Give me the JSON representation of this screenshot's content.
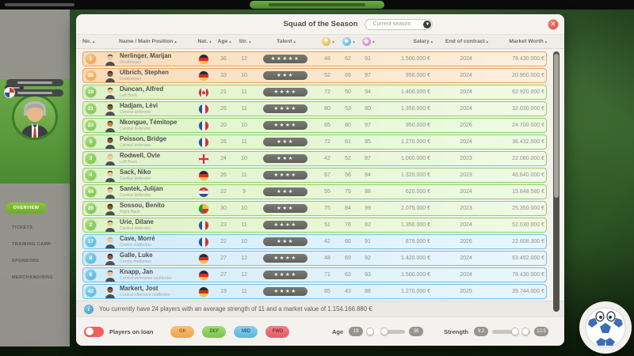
{
  "top_bar": {
    "has_left_caption": true,
    "center_button_color": "#5fa03d"
  },
  "sidebar": {
    "active_item": "OVERVIEW",
    "items": [
      "TICKETS",
      "TRAINING CAMP",
      "SPONSORS",
      "MERCHANDISING"
    ]
  },
  "modal": {
    "title": "Squad of the Season",
    "season_dropdown": {
      "value": "Current season"
    },
    "close_label": "✕",
    "table": {
      "columns": {
        "no": "No.",
        "name": "Name / Main Position",
        "nat": "Nat.",
        "age": "Age",
        "str": "Str.",
        "talent": "Talent",
        "salary": "Salary",
        "contract": "End of contract",
        "worth": "Market Worth"
      },
      "stat_icons": [
        "yellow-ball",
        "blue-ball",
        "purple-ring"
      ],
      "group_colors": {
        "gk": "#e9a45a",
        "def": "#8fd163",
        "mid": "#6fc3e4"
      },
      "rows": [
        {
          "no": "1",
          "name": "Nerlinger, Marijan",
          "position": "Goalkeeper",
          "nat": "de",
          "age": "36",
          "str": "12",
          "talent": 5,
          "stats": [
            "48",
            "62",
            "91"
          ],
          "salary": "1.500.000 €",
          "contract": "2024",
          "worth": "78.430.000 €",
          "group": "gk",
          "tone": "light"
        },
        {
          "no": "26",
          "name": "Ulbrich, Stephen",
          "position": "Goalkeeper",
          "nat": "de",
          "age": "33",
          "str": "10",
          "talent": 3,
          "stats": [
            "52",
            "69",
            "97"
          ],
          "salary": "950.000 €",
          "contract": "2024",
          "worth": "20.900.000 €",
          "group": "gk",
          "tone": "dark"
        },
        {
          "no": "19",
          "name": "Duncan, Alfred",
          "position": "Left Back",
          "nat": "ca",
          "age": "21",
          "str": "11",
          "talent": 4,
          "stats": [
            "72",
            "50",
            "94"
          ],
          "salary": "1.400.000 €",
          "contract": "2024",
          "worth": "62.920.000 €",
          "group": "def",
          "tone": "light"
        },
        {
          "no": "21",
          "name": "Hadjam, Lévi",
          "position": "Central defender",
          "nat": "fr",
          "age": "26",
          "str": "11",
          "talent": 4,
          "stats": [
            "80",
            "53",
            "80"
          ],
          "salary": "1.350.000 €",
          "contract": "2024",
          "worth": "32.030.000 €",
          "group": "def",
          "tone": "dark"
        },
        {
          "no": "23",
          "name": "Nkongue, Témitope",
          "position": "Central defender",
          "nat": "fr",
          "age": "20",
          "str": "10",
          "talent": 4,
          "stats": [
            "65",
            "80",
            "97"
          ],
          "salary": "950.000 €",
          "contract": "2026",
          "worth": "24.700.000 €",
          "group": "def",
          "tone": "mid"
        },
        {
          "no": "5",
          "name": "Peisson, Bridge",
          "position": "Central defender",
          "nat": "fr",
          "age": "26",
          "str": "11",
          "talent": 3,
          "stats": [
            "72",
            "61",
            "85"
          ],
          "salary": "1.270.000 €",
          "contract": "2024",
          "worth": "36.432.000 €",
          "group": "def",
          "tone": "dark"
        },
        {
          "no": "3",
          "name": "Rodwell, Ovie",
          "position": "Left Back",
          "nat": "en",
          "age": "24",
          "str": "10",
          "talent": 3,
          "stats": [
            "42",
            "52",
            "87"
          ],
          "salary": "1.000.000 €",
          "contract": "2023",
          "worth": "22.080.000 €",
          "group": "def",
          "tone": "blond"
        },
        {
          "no": "4",
          "name": "Sack, Niko",
          "position": "Central defender",
          "nat": "de",
          "age": "26",
          "str": "11",
          "talent": 4,
          "stats": [
            "67",
            "56",
            "84"
          ],
          "salary": "1.320.000 €",
          "contract": "2023",
          "worth": "46.640.000 €",
          "group": "def",
          "tone": "light"
        },
        {
          "no": "44",
          "name": "Santek, Julijan",
          "position": "Central defender",
          "nat": "hr",
          "age": "22",
          "str": "9",
          "talent": 3,
          "stats": [
            "55",
            "75",
            "88"
          ],
          "salary": "620.000 €",
          "contract": "2024",
          "worth": "15.848.580 €",
          "group": "def",
          "tone": "light"
        },
        {
          "no": "20",
          "name": "Sossou, Benito",
          "position": "Right Back",
          "nat": "bj",
          "age": "30",
          "str": "10",
          "talent": 3,
          "stats": [
            "75",
            "84",
            "99"
          ],
          "salary": "1.075.000 €",
          "contract": "2023",
          "worth": "25.350.000 €",
          "group": "def",
          "tone": "dark"
        },
        {
          "no": "2",
          "name": "Urie, Dilane",
          "position": "Central defender",
          "nat": "fr",
          "age": "23",
          "str": "11",
          "talent": 4,
          "stats": [
            "51",
            "76",
            "82"
          ],
          "salary": "1.350.000 €",
          "contract": "2024",
          "worth": "52.030.000 €",
          "group": "def",
          "tone": "light"
        },
        {
          "no": "17",
          "name": "Cave, Morré",
          "position": "Centre midfielder",
          "nat": "fr",
          "age": "22",
          "str": "10",
          "talent": 3,
          "stats": [
            "42",
            "66",
            "91"
          ],
          "salary": "879.000 €",
          "contract": "2026",
          "worth": "22.608.300 €",
          "group": "mid",
          "tone": "blond"
        },
        {
          "no": "8",
          "name": "Galle, Luke",
          "position": "Centre midfielder",
          "nat": "de",
          "age": "27",
          "str": "12",
          "talent": 4,
          "stats": [
            "48",
            "69",
            "92"
          ],
          "salary": "1.420.000 €",
          "contract": "2024",
          "worth": "63.492.000 €",
          "group": "mid",
          "tone": "dark"
        },
        {
          "no": "6",
          "name": "Knapp, Jan",
          "position": "Central defensive midfielder",
          "nat": "de",
          "age": "27",
          "str": "12",
          "talent": 4,
          "stats": [
            "71",
            "63",
            "93"
          ],
          "salary": "1.500.000 €",
          "contract": "2024",
          "worth": "78.430.000 €",
          "group": "mid",
          "tone": "light"
        },
        {
          "no": "42",
          "name": "Markert, Jost",
          "position": "Central offensive midfielder",
          "nat": "de",
          "age": "19",
          "str": "11",
          "talent": 4,
          "stats": [
            "65",
            "43",
            "88"
          ],
          "salary": "1.270.000 €",
          "contract": "2025",
          "worth": "39.744.000 €",
          "group": "mid",
          "tone": "dark"
        }
      ]
    },
    "info_bar": {
      "text": "You currently have 24 players with an average strength of 11 and a market value of 1.154.166.880 €"
    },
    "filters": {
      "loan_toggle_label": "Players on loan",
      "position_buttons": [
        "GK",
        "DEF",
        "MID",
        "FWD"
      ],
      "age_label": "Age",
      "age_min": "19",
      "age_max": "36",
      "strength_label": "Strength",
      "strength_min": "9.2",
      "strength_max": "12.5"
    }
  }
}
